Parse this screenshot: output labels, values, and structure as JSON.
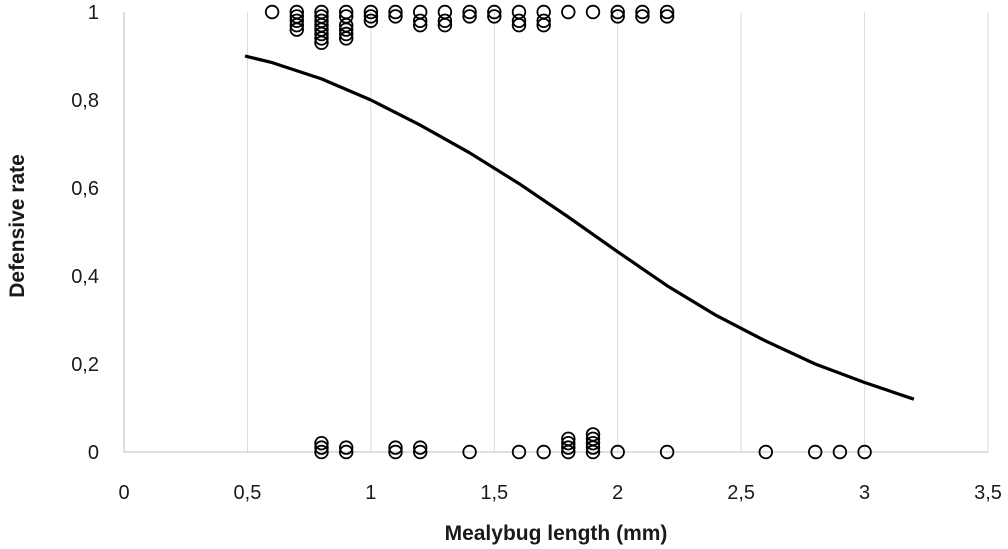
{
  "chart_data": {
    "type": "scatter",
    "xlabel": "Mealybug length (mm)",
    "ylabel": "Defensive rate",
    "xlim": [
      0,
      3.5
    ],
    "ylim": [
      0,
      1
    ],
    "x_ticks": [
      "0",
      "0,5",
      "1",
      "1,5",
      "2",
      "2,5",
      "3",
      "3,5"
    ],
    "y_ticks": [
      "0",
      "0,2",
      "0,4",
      "0,6",
      "0,8",
      "1"
    ],
    "grid": "vertical-major",
    "series": [
      {
        "marker": "open-circle",
        "points": [
          [
            0.6,
            1
          ],
          [
            0.7,
            1
          ],
          [
            0.7,
            0.99
          ],
          [
            0.7,
            0.98
          ],
          [
            0.7,
            0.97
          ],
          [
            0.7,
            0.96
          ],
          [
            0.8,
            1
          ],
          [
            0.8,
            0.99
          ],
          [
            0.8,
            0.98
          ],
          [
            0.8,
            0.97
          ],
          [
            0.8,
            0.96
          ],
          [
            0.8,
            0.95
          ],
          [
            0.8,
            0.94
          ],
          [
            0.8,
            0.93
          ],
          [
            0.9,
            1
          ],
          [
            0.9,
            0.99
          ],
          [
            0.9,
            0.97
          ],
          [
            0.9,
            0.96
          ],
          [
            0.9,
            0.95
          ],
          [
            0.9,
            0.94
          ],
          [
            1.0,
            1
          ],
          [
            1.0,
            0.99
          ],
          [
            1.0,
            0.98
          ],
          [
            1.1,
            1
          ],
          [
            1.1,
            0.99
          ],
          [
            1.2,
            1
          ],
          [
            1.2,
            0.98
          ],
          [
            1.2,
            0.97
          ],
          [
            1.3,
            1
          ],
          [
            1.3,
            0.98
          ],
          [
            1.3,
            0.97
          ],
          [
            1.4,
            1
          ],
          [
            1.4,
            0.99
          ],
          [
            1.5,
            1
          ],
          [
            1.5,
            0.99
          ],
          [
            1.6,
            1
          ],
          [
            1.6,
            0.98
          ],
          [
            1.6,
            0.97
          ],
          [
            1.7,
            1
          ],
          [
            1.7,
            0.98
          ],
          [
            1.7,
            0.97
          ],
          [
            1.8,
            1
          ],
          [
            1.9,
            1
          ],
          [
            2.0,
            1
          ],
          [
            2.0,
            0.99
          ],
          [
            2.1,
            1
          ],
          [
            2.1,
            0.99
          ],
          [
            2.2,
            1
          ],
          [
            2.2,
            0.99
          ],
          [
            0.8,
            0.02
          ],
          [
            0.8,
            0.01
          ],
          [
            0.8,
            0
          ],
          [
            0.9,
            0.01
          ],
          [
            0.9,
            0
          ],
          [
            1.1,
            0.01
          ],
          [
            1.1,
            0
          ],
          [
            1.2,
            0.01
          ],
          [
            1.2,
            0
          ],
          [
            1.4,
            0
          ],
          [
            1.6,
            0
          ],
          [
            1.7,
            0
          ],
          [
            1.8,
            0.03
          ],
          [
            1.8,
            0.02
          ],
          [
            1.8,
            0.01
          ],
          [
            1.8,
            0
          ],
          [
            1.9,
            0.04
          ],
          [
            1.9,
            0.03
          ],
          [
            1.9,
            0.02
          ],
          [
            1.9,
            0.01
          ],
          [
            1.9,
            0
          ],
          [
            2.0,
            0
          ],
          [
            2.2,
            0
          ],
          [
            2.6,
            0
          ],
          [
            2.8,
            0
          ],
          [
            2.9,
            0
          ],
          [
            3.0,
            0
          ]
        ]
      },
      {
        "marker": "line",
        "points": [
          [
            0.49,
            0.9
          ],
          [
            0.6,
            0.885
          ],
          [
            0.8,
            0.848
          ],
          [
            1.0,
            0.8
          ],
          [
            1.2,
            0.743
          ],
          [
            1.4,
            0.68
          ],
          [
            1.6,
            0.61
          ],
          [
            1.8,
            0.534
          ],
          [
            2.0,
            0.455
          ],
          [
            2.2,
            0.378
          ],
          [
            2.4,
            0.31
          ],
          [
            2.6,
            0.252
          ],
          [
            2.8,
            0.2
          ],
          [
            3.0,
            0.158
          ],
          [
            3.2,
            0.12
          ]
        ]
      }
    ]
  }
}
